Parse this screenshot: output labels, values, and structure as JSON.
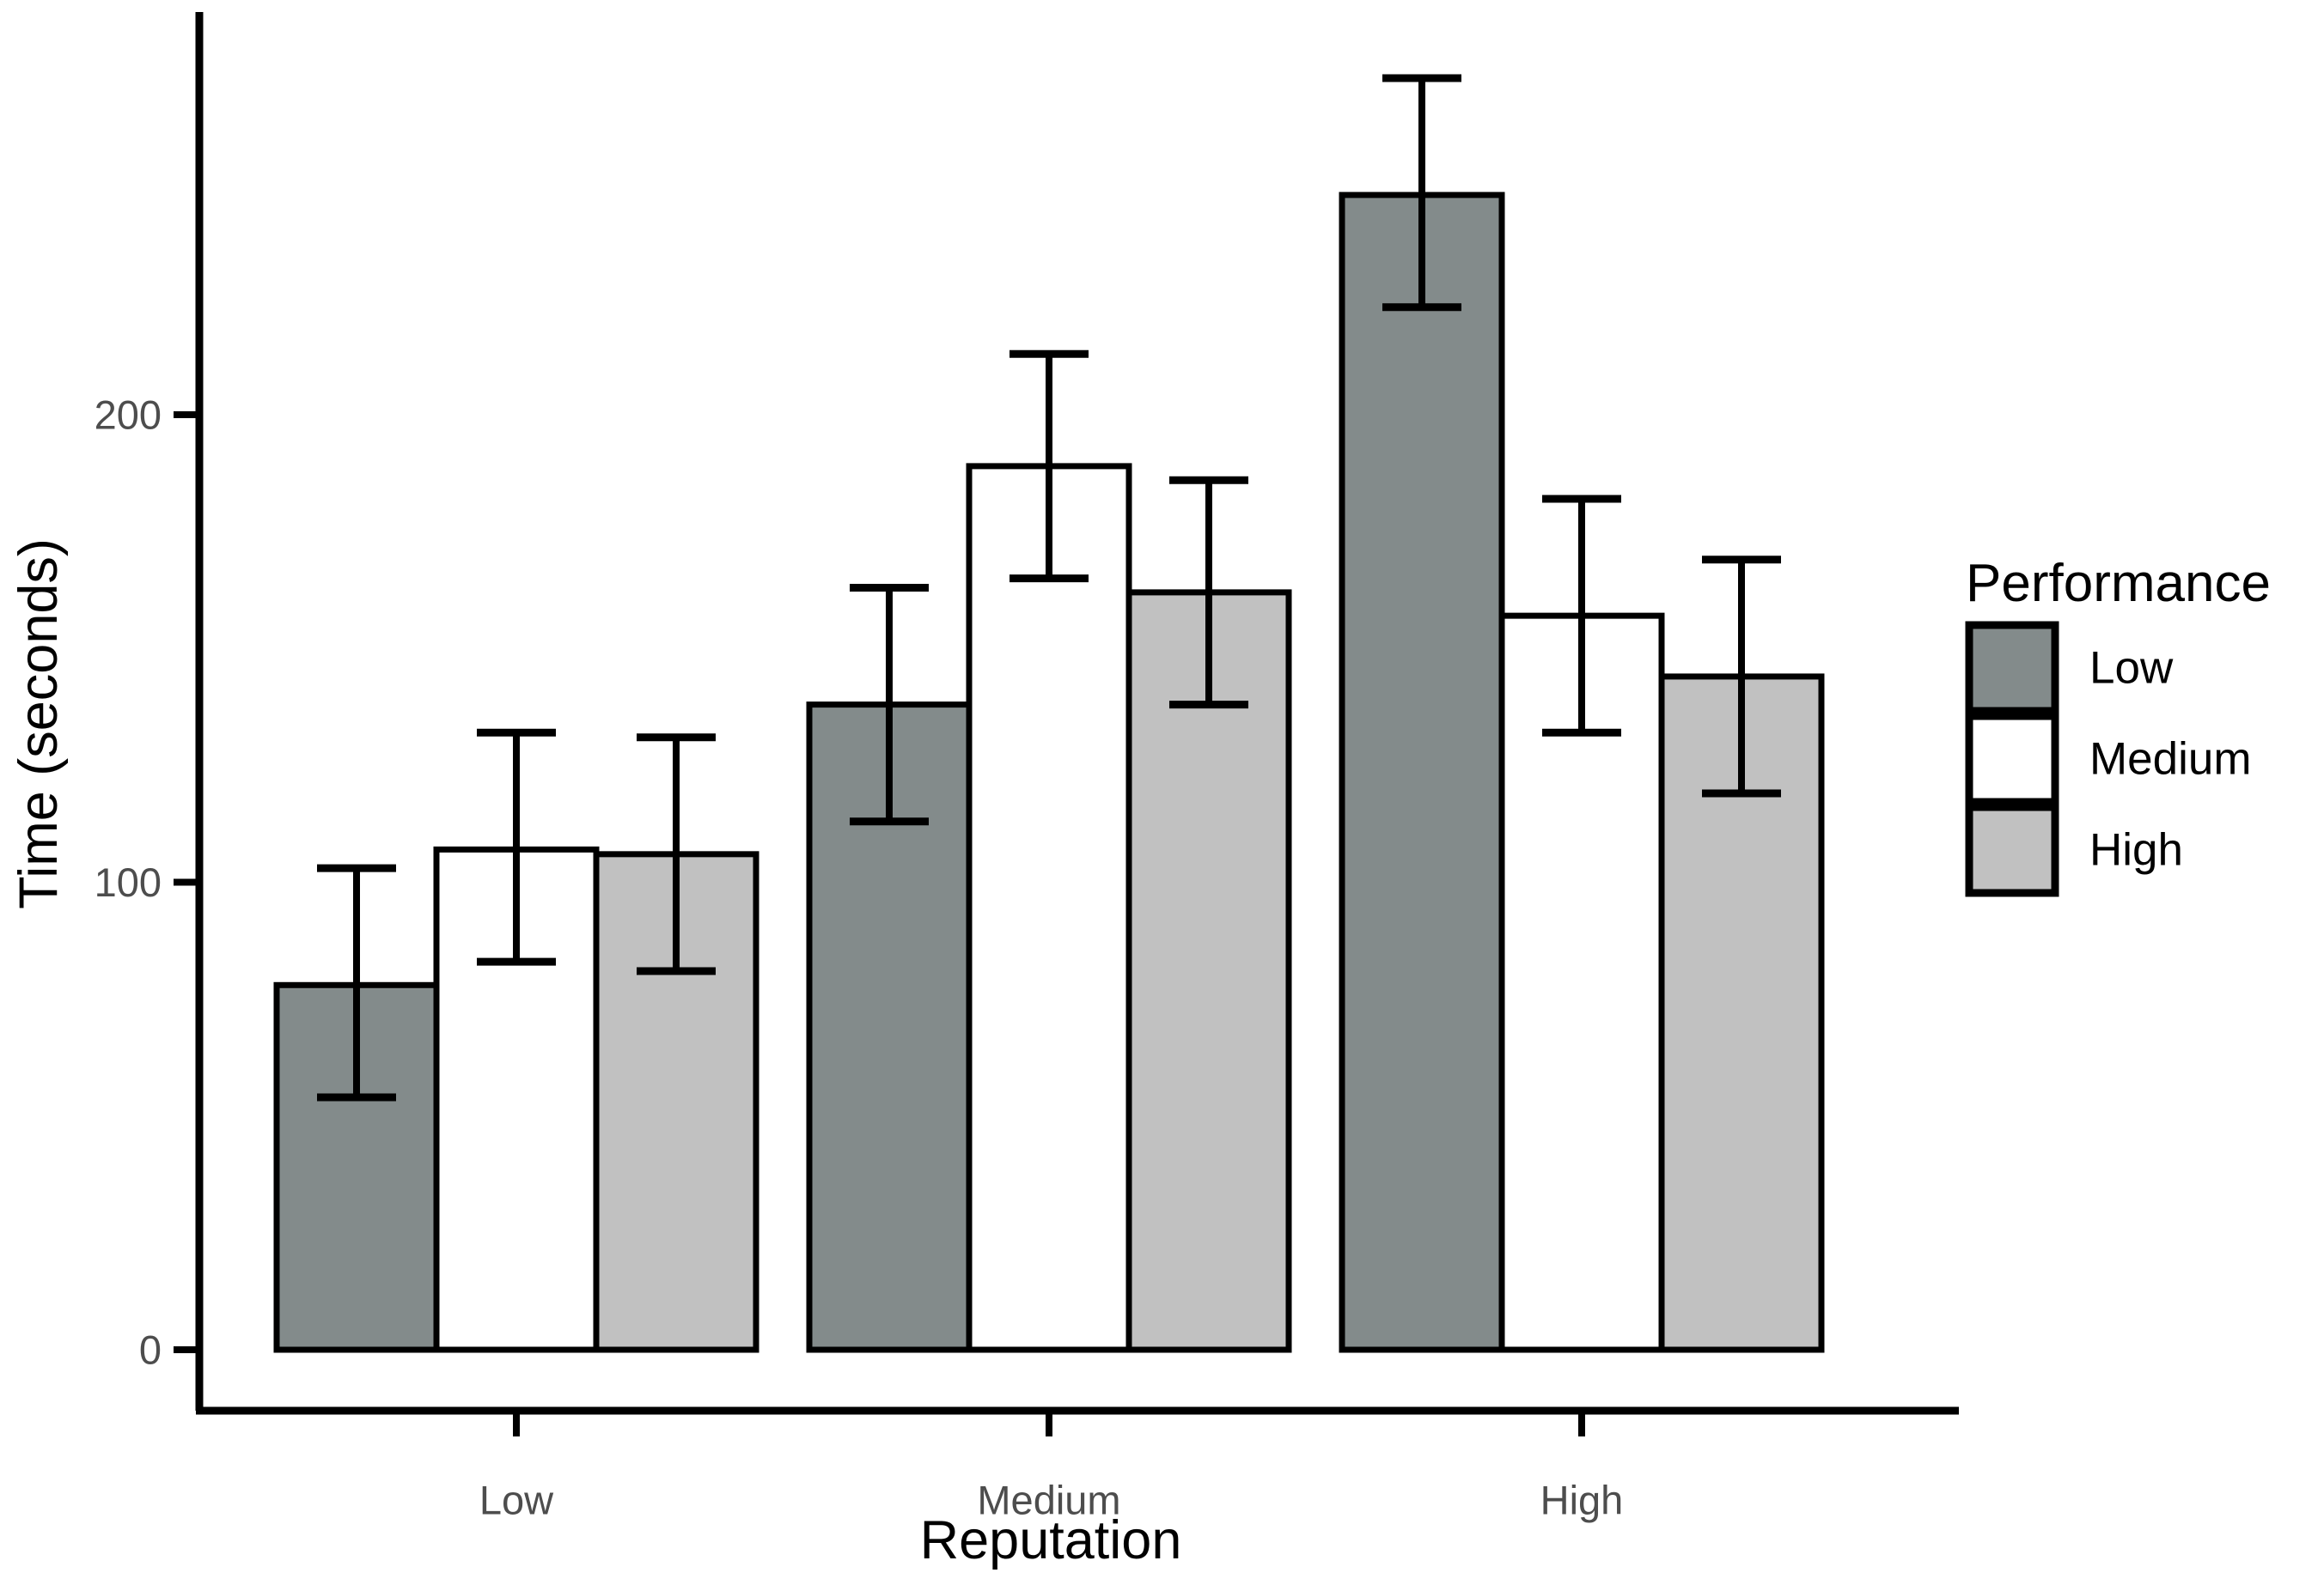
{
  "chart_data": {
    "type": "bar",
    "title": "",
    "xlabel": "Reputation",
    "ylabel": "Time (seconds)",
    "categories": [
      "Low",
      "Medium",
      "High"
    ],
    "legend_title": "Performance",
    "legend_position": "right",
    "legend_entries": [
      "Low",
      "Medium",
      "High"
    ],
    "series": [
      {
        "name": "Low",
        "fill": "#838B8B",
        "values": [
          78,
          138,
          247
        ],
        "ci_lower": [
          54,
          113,
          223
        ],
        "ci_upper": [
          103,
          163,
          272
        ]
      },
      {
        "name": "Medium",
        "fill": "#FFFFFF",
        "values": [
          107,
          189,
          157
        ],
        "ci_lower": [
          83,
          165,
          132
        ],
        "ci_upper": [
          132,
          213,
          182
        ]
      },
      {
        "name": "High",
        "fill": "#C1C1C1",
        "values": [
          106,
          162,
          144
        ],
        "ci_lower": [
          81,
          138,
          119
        ],
        "ci_upper": [
          131,
          186,
          169
        ]
      }
    ],
    "ylim": [
      0,
      290
    ],
    "yticks": [
      0,
      100,
      200
    ],
    "grid": false,
    "bar_border_color": "#000000",
    "error_bar_color": "#000000",
    "tick_text_color": "#4D4D4D",
    "axis_line_color": "#000000",
    "background_color": "#FFFFFF"
  }
}
